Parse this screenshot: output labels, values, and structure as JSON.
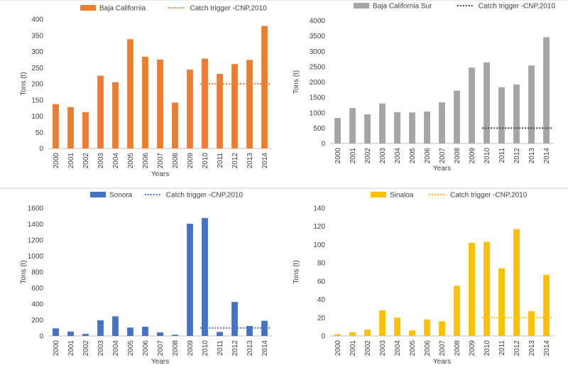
{
  "chart_data": [
    {
      "id": "baja-california",
      "type": "bar",
      "categories": [
        "2000",
        "2001",
        "2002",
        "2003",
        "2004",
        "2005",
        "2006",
        "2007",
        "2008",
        "2009",
        "2010",
        "2011",
        "2012",
        "2013",
        "2014"
      ],
      "series": [
        {
          "name": "Baja California",
          "values": [
            137,
            128,
            112,
            225,
            205,
            338,
            284,
            275,
            142,
            244,
            278,
            231,
            261,
            274,
            379
          ]
        }
      ],
      "trigger": {
        "name": "Catch trigger -CNP,2010",
        "value": 200,
        "from": "2010",
        "to": "2014"
      },
      "color": "#ED7D31",
      "xlabel": "Years",
      "ylabel": "Tons (t)",
      "ylim": [
        0,
        400
      ],
      "yticks": [
        0,
        50,
        100,
        150,
        200,
        250,
        300,
        350,
        400
      ]
    },
    {
      "id": "baja-california-sur",
      "type": "bar",
      "categories": [
        "2000",
        "2001",
        "2002",
        "2003",
        "2004",
        "2005",
        "2006",
        "2007",
        "2008",
        "2009",
        "2010",
        "2011",
        "2012",
        "2013",
        "2014"
      ],
      "series": [
        {
          "name": "Baja California Sur",
          "values": [
            830,
            1150,
            950,
            1300,
            1020,
            1010,
            1040,
            1340,
            1720,
            2470,
            2640,
            1830,
            1920,
            2540,
            3460
          ]
        }
      ],
      "trigger": {
        "name": "Catch trigger -CNP,2010",
        "value": 500,
        "from": "2010",
        "to": "2014"
      },
      "color": "#A5A5A5",
      "xlabel": "Years",
      "ylabel": "Tons (t)",
      "ylim": [
        0,
        4000
      ],
      "yticks": [
        0,
        500,
        1000,
        1500,
        2000,
        2500,
        3000,
        3500,
        4000
      ]
    },
    {
      "id": "sonora",
      "type": "bar",
      "categories": [
        "2000",
        "2001",
        "2002",
        "2003",
        "2004",
        "2005",
        "2006",
        "2007",
        "2008",
        "2009",
        "2010",
        "2011",
        "2012",
        "2013",
        "2014"
      ],
      "series": [
        {
          "name": "Sonora",
          "values": [
            95,
            55,
            25,
            195,
            245,
            105,
            115,
            45,
            15,
            1405,
            1475,
            50,
            425,
            125,
            190
          ]
        }
      ],
      "trigger": {
        "name": "Catch trigger -CNP,2010",
        "value": 100,
        "from": "2010",
        "to": "2014"
      },
      "color": "#4472C4",
      "xlabel": "Years",
      "ylabel": "Tons (t)",
      "ylim": [
        0,
        1600
      ],
      "yticks": [
        0,
        200,
        400,
        600,
        800,
        1000,
        1200,
        1400,
        1600
      ]
    },
    {
      "id": "sinaloa",
      "type": "bar",
      "categories": [
        "2000",
        "2001",
        "2002",
        "2003",
        "2004",
        "2005",
        "2006",
        "2007",
        "2008",
        "2009",
        "2010",
        "2011",
        "2012",
        "2013",
        "2014"
      ],
      "series": [
        {
          "name": "Sinaloa",
          "values": [
            2,
            4,
            7,
            28,
            20,
            6,
            18,
            16,
            55,
            102,
            103,
            74,
            117,
            27,
            67
          ]
        }
      ],
      "trigger": {
        "name": "Catch trigger -CNP,2010",
        "value": 20,
        "from": "2010",
        "to": "2014"
      },
      "color": "#FFC000",
      "xlabel": "Years",
      "ylabel": "Tons (t)",
      "ylim": [
        0,
        140
      ],
      "yticks": [
        0,
        20,
        40,
        60,
        80,
        100,
        120,
        140
      ]
    }
  ]
}
